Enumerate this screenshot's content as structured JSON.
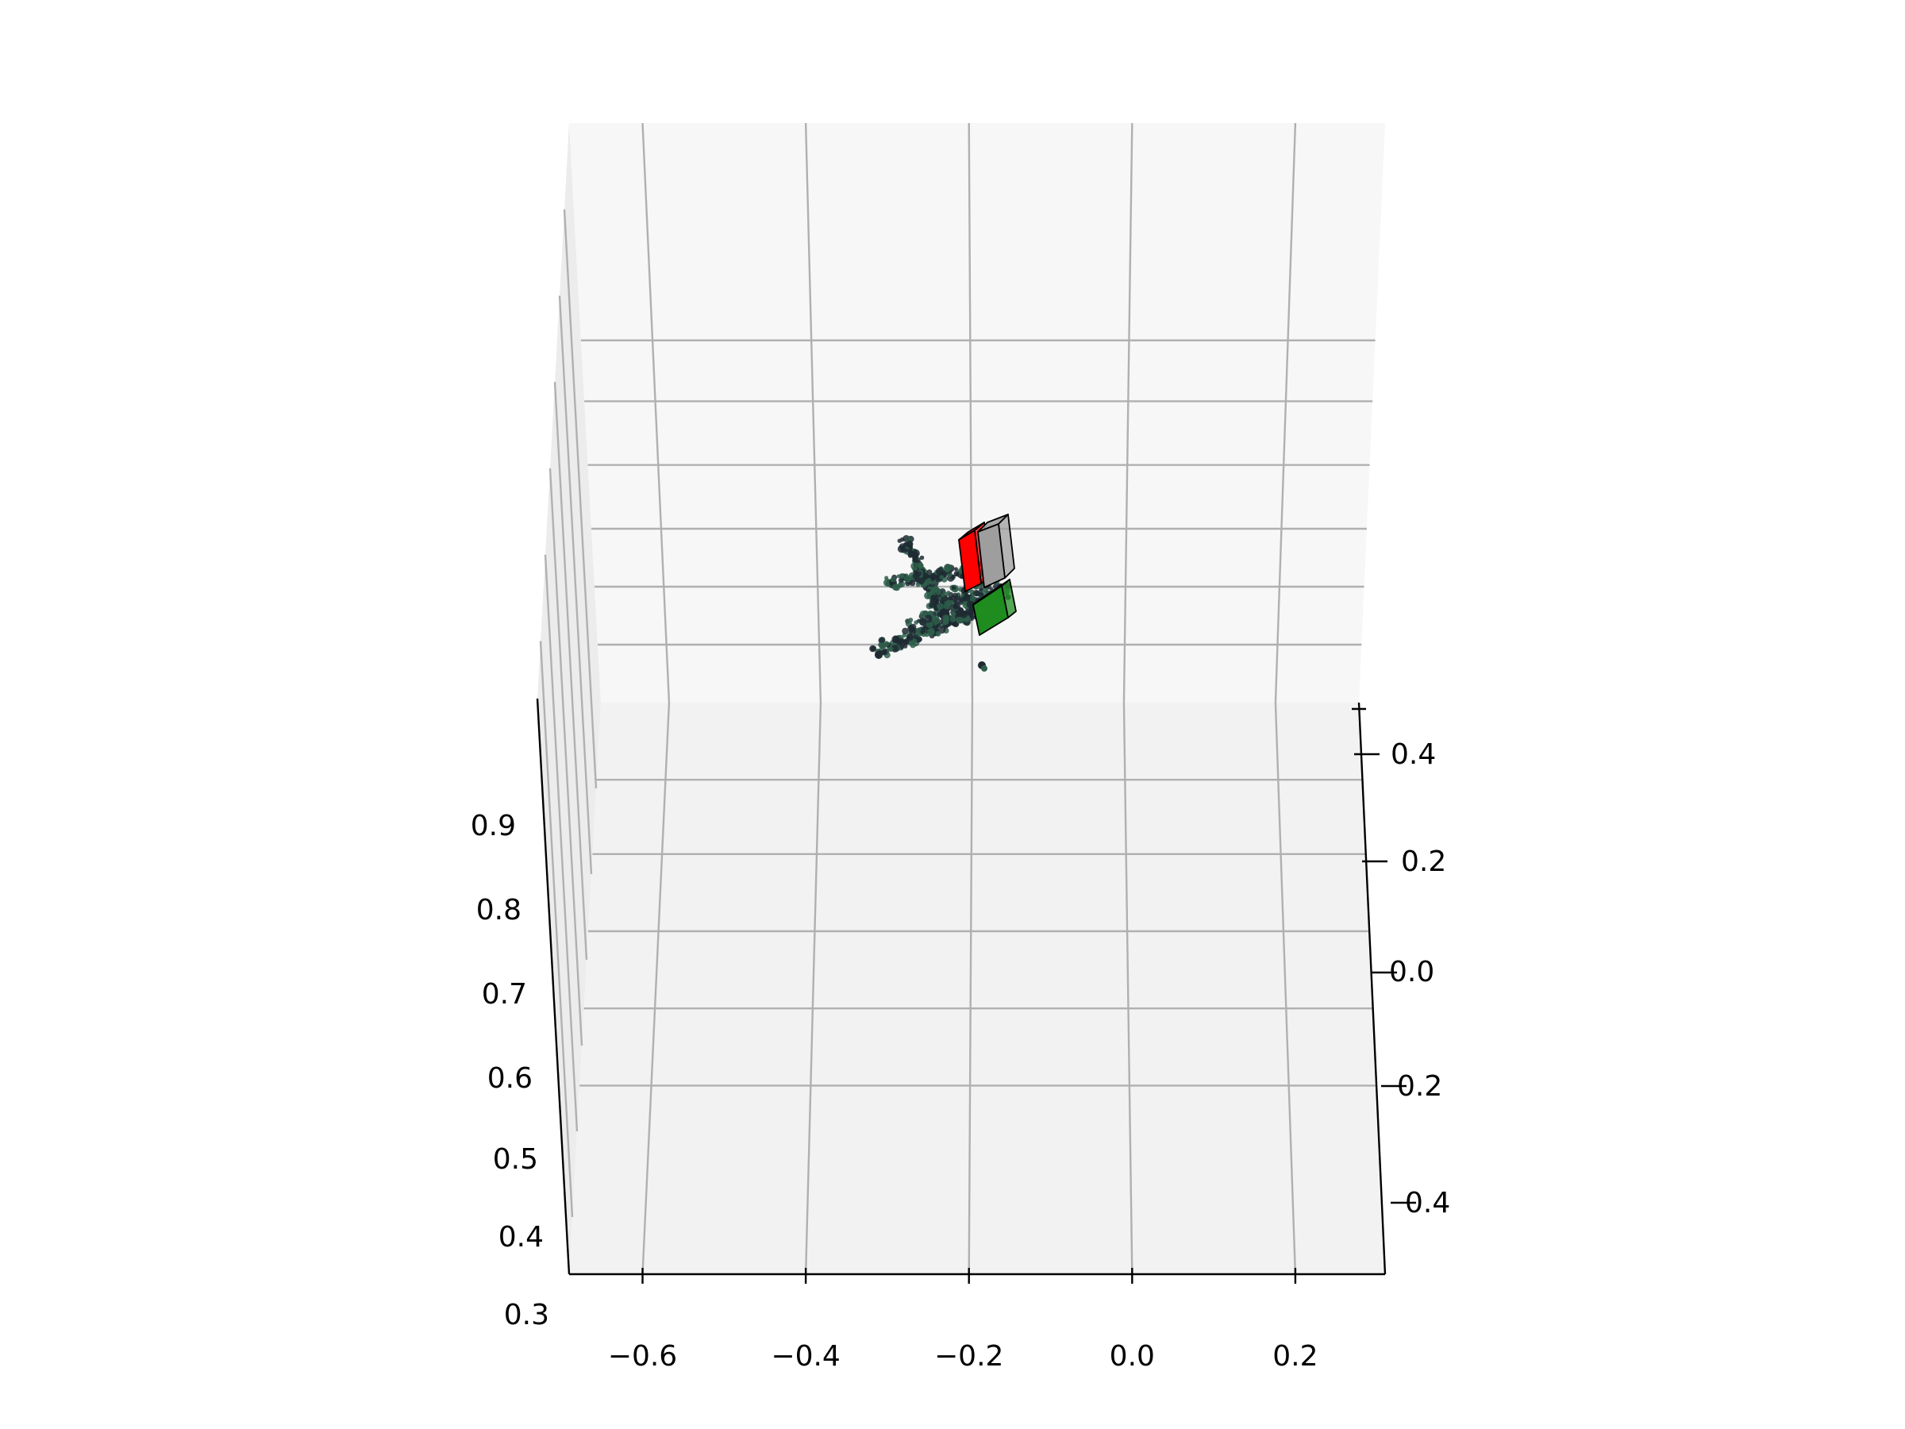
{
  "chart_data": {
    "type": "scatter",
    "projection": "3d",
    "title": "",
    "xlabel": "",
    "ylabel": "",
    "zlabel": "",
    "grid": true,
    "x_ticks": [
      "−0.6",
      "−0.4",
      "−0.2",
      "0.0",
      "0.2"
    ],
    "y_ticks": [
      "0.4",
      "0.2",
      "0.0",
      "0.2",
      "0.4"
    ],
    "z_ticks": [
      "0.9",
      "0.8",
      "0.7",
      "0.6",
      "0.5",
      "0.4",
      "0.3"
    ],
    "xlim": [
      -0.69,
      0.31
    ],
    "ylim": [
      -0.5,
      0.5
    ],
    "zlim": [
      0.3,
      1.0
    ],
    "point_cloud": {
      "color_dark": "#1f2a33",
      "color_light": "#2e5e4a",
      "description_points": [
        {
          "x": -0.22,
          "y": 0.12,
          "z": 0.95
        },
        {
          "x": -0.24,
          "y": 0.1,
          "z": 0.93
        },
        {
          "x": -0.26,
          "y": 0.05,
          "z": 0.9
        },
        {
          "x": -0.3,
          "y": 0.02,
          "z": 0.88
        },
        {
          "x": -0.2,
          "y": 0.0,
          "z": 0.86
        }
      ]
    },
    "boxes": [
      {
        "name": "red",
        "color": "#ff0000"
      },
      {
        "name": "gray",
        "color": "#9e9e9e"
      },
      {
        "name": "green",
        "color": "#1e8c1e"
      }
    ],
    "colors": {
      "pane_back": "#f7f7f7",
      "pane_floor": "#f2f2f2",
      "grid": "#b0b0b0"
    }
  }
}
